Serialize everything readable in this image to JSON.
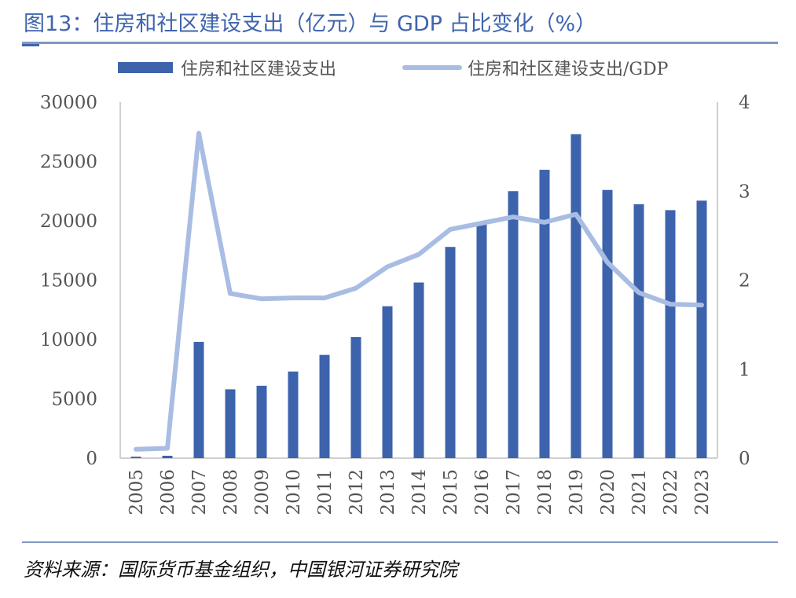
{
  "title": "图13：住房和社区建设支出（亿元）与 GDP 占比变化（%）",
  "source": "资料来源：国际货币基金组织，中国银河证券研究院",
  "colors": {
    "bar": "#3d63ad",
    "line": "#a9bde3",
    "axis": "#d0d0d0",
    "title": "#3f64ad"
  },
  "chart_data": {
    "type": "bar+line",
    "categories": [
      "2005",
      "2006",
      "2007",
      "2008",
      "2009",
      "2010",
      "2011",
      "2012",
      "2013",
      "2014",
      "2015",
      "2016",
      "2017",
      "2018",
      "2019",
      "2020",
      "2021",
      "2022",
      "2023"
    ],
    "series": [
      {
        "name": "住房和社区建设支出",
        "type": "bar",
        "axis": "left",
        "values": [
          120,
          200,
          9800,
          5800,
          6100,
          7300,
          8700,
          10200,
          12800,
          14800,
          17800,
          19800,
          22500,
          24300,
          27300,
          22600,
          21400,
          20900,
          21700
        ]
      },
      {
        "name": "住房和社区建设支出/GDP",
        "type": "line",
        "axis": "right",
        "values": [
          0.1,
          0.11,
          3.65,
          1.85,
          1.79,
          1.8,
          1.8,
          1.91,
          2.15,
          2.29,
          2.57,
          2.64,
          2.71,
          2.65,
          2.74,
          2.2,
          1.86,
          1.73,
          1.72
        ]
      }
    ],
    "left_axis": {
      "min": 0,
      "max": 30000,
      "ticks": [
        "0",
        "5000",
        "10000",
        "15000",
        "20000",
        "25000",
        "30000"
      ]
    },
    "right_axis": {
      "min": 0,
      "max": 4,
      "ticks": [
        "0",
        "1",
        "2",
        "3",
        "4"
      ]
    },
    "legend": {
      "position": "top"
    }
  }
}
